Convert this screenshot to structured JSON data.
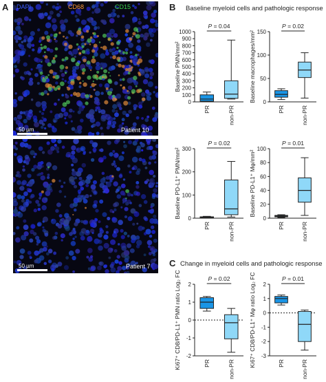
{
  "panel_a": {
    "letter": "A",
    "stain_labels": {
      "dapi": "DAPI",
      "cd68": "CD68",
      "cd15": "CD15"
    },
    "stain_colors": {
      "dapi": "#3a5cff",
      "cd68": "#ff9a3c",
      "cd15": "#3ad24a"
    },
    "top_image": {
      "scale_label": "50 µm",
      "patient": "Patient 10"
    },
    "bottom_image": {
      "scale_label": "50 µm",
      "patient": "Patient 7"
    }
  },
  "panel_b": {
    "letter": "B",
    "title": "Baseline myeloid cells and pathologic response"
  },
  "panel_c": {
    "letter": "C",
    "title": "Change in myeloid cells and pathologic response"
  },
  "chart_data": [
    {
      "type": "box",
      "panel": "B",
      "ylabel": "Baseline PMN/mm²",
      "ylim": [
        0,
        1000
      ],
      "yticks": [
        0,
        100,
        200,
        300,
        400,
        500,
        600,
        700,
        800,
        900,
        1000
      ],
      "categories": [
        "PR",
        "non-PR"
      ],
      "boxes": [
        {
          "name": "PR",
          "color": "#1a95e6",
          "min": 5,
          "q1": 10,
          "median": 40,
          "q3": 100,
          "max": 140
        },
        {
          "name": "non-PR",
          "color": "#8fd8f8",
          "min": 40,
          "q1": 50,
          "median": 110,
          "q3": 300,
          "max": 880
        }
      ],
      "annotation": "P = 0.04",
      "dashed_zero": false
    },
    {
      "type": "box",
      "panel": "B",
      "ylabel": "Baseline macrophages/mm²",
      "ylim": [
        0,
        150
      ],
      "yticks": [
        0,
        50,
        100,
        150
      ],
      "categories": [
        "PR",
        "non-PR"
      ],
      "boxes": [
        {
          "name": "PR",
          "color": "#1a95e6",
          "min": 5,
          "q1": 10,
          "median": 16,
          "q3": 24,
          "max": 28
        },
        {
          "name": "non-PR",
          "color": "#8fd8f8",
          "min": 8,
          "q1": 52,
          "median": 68,
          "q3": 85,
          "max": 105
        }
      ],
      "annotation": "P = 0.02",
      "dashed_zero": false
    },
    {
      "type": "box",
      "panel": "B",
      "ylabel": "Baseline PD-L1⁺ PMN/mm²",
      "ylim": [
        0,
        300
      ],
      "yticks": [
        0,
        100,
        200,
        300
      ],
      "categories": [
        "PR",
        "non-PR"
      ],
      "boxes": [
        {
          "name": "PR",
          "color": "#1a95e6",
          "min": 0,
          "q1": 1,
          "median": 3,
          "q3": 6,
          "max": 8
        },
        {
          "name": "non-PR",
          "color": "#8fd8f8",
          "min": 5,
          "q1": 15,
          "median": 40,
          "q3": 165,
          "max": 245
        }
      ],
      "annotation": "P = 0.02",
      "dashed_zero": false
    },
    {
      "type": "box",
      "panel": "B",
      "ylabel": "Baseline PD-L1⁺ Mφ/mm²",
      "ylim": [
        0,
        100
      ],
      "yticks": [
        0,
        20,
        40,
        60,
        80,
        100
      ],
      "categories": [
        "PR",
        "non-PR"
      ],
      "boxes": [
        {
          "name": "PR",
          "color": "#1a95e6",
          "min": 1,
          "q1": 2,
          "median": 3,
          "q3": 4,
          "max": 5
        },
        {
          "name": "non-PR",
          "color": "#8fd8f8",
          "min": 4,
          "q1": 23,
          "median": 40,
          "q3": 58,
          "max": 87
        }
      ],
      "annotation": "P = 0.01",
      "dashed_zero": false
    },
    {
      "type": "box",
      "panel": "C",
      "ylabel": "Ki67⁺ CD8/PD-L1⁺ PMN ratio Log₂ FC",
      "ylim": [
        -2,
        2
      ],
      "yticks": [
        -2,
        -1,
        0,
        1,
        2
      ],
      "categories": [
        "PR",
        "non-PR"
      ],
      "boxes": [
        {
          "name": "PR",
          "color": "#1a95e6",
          "min": 0.5,
          "q1": 0.65,
          "median": 1.0,
          "q3": 1.25,
          "max": 1.32
        },
        {
          "name": "non-PR",
          "color": "#8fd8f8",
          "min": -1.8,
          "q1": -1.05,
          "median": -0.15,
          "q3": 0.3,
          "max": 0.65
        }
      ],
      "annotation": "P = 0.02",
      "dashed_zero": true
    },
    {
      "type": "box",
      "panel": "C",
      "ylabel": "Ki67⁺ CD8/PD-L1⁺ Mφ ratio Log₂ FC",
      "ylim": [
        -3,
        2
      ],
      "yticks": [
        -3,
        -2,
        -1,
        0,
        1,
        2
      ],
      "categories": [
        "PR",
        "non-PR"
      ],
      "boxes": [
        {
          "name": "PR",
          "color": "#1a95e6",
          "min": 0.55,
          "q1": 0.7,
          "median": 1.0,
          "q3": 1.15,
          "max": 1.25
        },
        {
          "name": "non-PR",
          "color": "#8fd8f8",
          "min": -2.6,
          "q1": -2.0,
          "median": -0.8,
          "q3": 0.1,
          "max": 0.2
        }
      ],
      "annotation": "P = 0.01",
      "dashed_zero": true
    }
  ]
}
